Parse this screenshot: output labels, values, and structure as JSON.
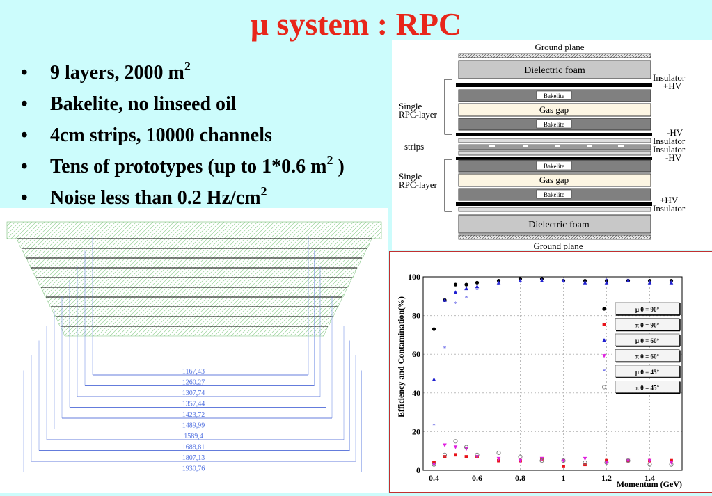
{
  "slide": {
    "title": "μ system : RPC",
    "bullets": [
      {
        "text": "9 layers, 2000 m",
        "sup": "2",
        "tail": ""
      },
      {
        "text": "Bakelite, no linseed oil",
        "sup": "",
        "tail": ""
      },
      {
        "text": "4cm strips, 10000 channels",
        "sup": "",
        "tail": ""
      },
      {
        "text": "Tens of prototypes (up to 1*0.6 m",
        "sup": "2",
        "tail": " )"
      },
      {
        "text": "Noise less than 0.2 Hz/cm",
        "sup": "2",
        "tail": ""
      }
    ]
  },
  "rpc_diagram": {
    "top_label": "Ground plane",
    "bottom_label": "Ground plane",
    "layers": [
      "Dielectric foam",
      "Bakelite",
      "Gas gap",
      "Bakelite",
      "Bakelite",
      "Gas gap",
      "Bakelite",
      "Dielectric foam"
    ],
    "left_labels": [
      "Single",
      "RPC-layer",
      "strips",
      "Single",
      "RPC-layer"
    ],
    "right_labels": [
      "Insulator",
      "+HV",
      "-HV",
      "Insulator",
      "Insulator",
      "-HV",
      "+HV",
      "Insulator"
    ]
  },
  "trapezoid": {
    "dimensions": [
      "1167,43",
      "1260,27",
      "1307,74",
      "1357,44",
      "1423,72",
      "1489,99",
      "1589,4",
      "1688,81",
      "1807,13",
      "1930,76"
    ]
  },
  "chart_data": {
    "type": "scatter",
    "title": "",
    "xlabel": "Momentum (GeV)",
    "ylabel": "Efficiency and Contamination(%)",
    "xlim": [
      0.35,
      1.55
    ],
    "ylim": [
      0,
      100
    ],
    "xticks": [
      "0.4",
      "0.6",
      "0.8",
      "1",
      "1.2",
      "1.4"
    ],
    "yticks": [
      "0",
      "20",
      "40",
      "60",
      "80",
      "100"
    ],
    "grid": true,
    "legend_position": "right",
    "series": [
      {
        "name": "μ θ = 90°",
        "color": "#000000",
        "marker": "circle",
        "x": [
          0.4,
          0.45,
          0.5,
          0.55,
          0.6,
          0.7,
          0.8,
          0.9,
          1.0,
          1.1,
          1.2,
          1.3,
          1.4,
          1.5
        ],
        "y": [
          73,
          88,
          96,
          96,
          97,
          98,
          99,
          99,
          98,
          98,
          98,
          98,
          98,
          98
        ]
      },
      {
        "name": "π θ = 90°",
        "color": "#e8121a",
        "marker": "square",
        "x": [
          0.4,
          0.45,
          0.5,
          0.55,
          0.6,
          0.7,
          0.8,
          0.9,
          1.0,
          1.1,
          1.2,
          1.3,
          1.4,
          1.5
        ],
        "y": [
          4,
          7,
          8,
          7,
          7,
          5,
          5,
          6,
          2,
          3,
          5,
          5,
          5,
          5
        ]
      },
      {
        "name": "μ θ = 60°",
        "color": "#2020d0",
        "marker": "triangle",
        "x": [
          0.4,
          0.45,
          0.5,
          0.55,
          0.6,
          0.7,
          0.8,
          0.9,
          1.0,
          1.1,
          1.2,
          1.3,
          1.4,
          1.5
        ],
        "y": [
          47,
          88,
          92,
          94,
          95,
          97,
          98,
          98,
          98,
          97,
          97,
          98,
          97,
          97
        ]
      },
      {
        "name": "π θ = 60°",
        "color": "#e020e0",
        "marker": "triangle-down",
        "x": [
          0.4,
          0.45,
          0.5,
          0.55,
          0.6,
          0.7,
          0.8,
          0.9,
          1.0,
          1.1,
          1.2,
          1.3,
          1.4,
          1.5
        ],
        "y": [
          3,
          13,
          12,
          11,
          7,
          6,
          5,
          6,
          5,
          6,
          4,
          5,
          5,
          4
        ]
      },
      {
        "name": "μ θ = 45°",
        "color": "#4040e0",
        "marker": "star",
        "x": [
          0.4,
          0.45,
          0.5,
          0.55,
          0.6,
          0.7,
          0.8,
          0.9,
          1.0,
          1.1,
          1.2,
          1.3,
          1.4,
          1.5
        ],
        "y": [
          23,
          63,
          86,
          89,
          93,
          96,
          97,
          98,
          97,
          97,
          98,
          98,
          97,
          97
        ]
      },
      {
        "name": "π θ = 45°",
        "color": "#777777",
        "marker": "open-circle",
        "x": [
          0.4,
          0.45,
          0.5,
          0.55,
          0.6,
          0.7,
          0.8,
          0.9,
          1.0,
          1.1,
          1.2,
          1.3,
          1.4,
          1.5
        ],
        "y": [
          3,
          8,
          15,
          12,
          8,
          9,
          7,
          5,
          5,
          4,
          4,
          5,
          3,
          3
        ]
      }
    ]
  }
}
